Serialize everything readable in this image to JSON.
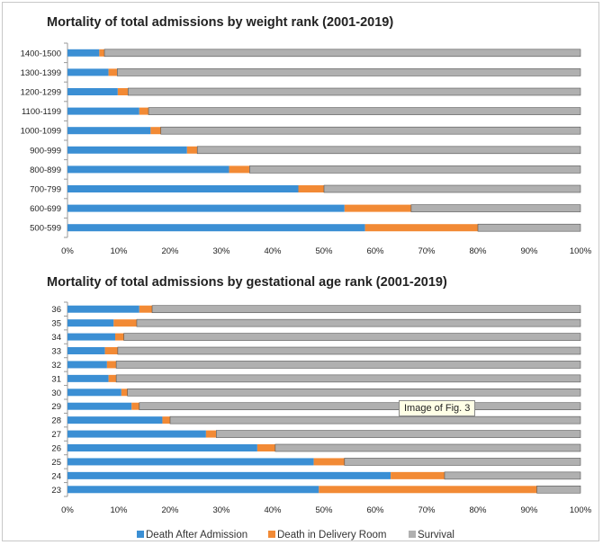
{
  "colors": {
    "death_after_admission": "#3b8fd4",
    "death_in_delivery_room": "#f28a35",
    "survival": "#b0b0b0"
  },
  "tooltip": "Image of Fig. 3",
  "legend": [
    {
      "label": "Death After Admission",
      "color": "#3b8fd4"
    },
    {
      "label": "Death in Delivery Room",
      "color": "#f28a35"
    },
    {
      "label": "Survival",
      "color": "#b0b0b0"
    }
  ],
  "chart_data": [
    {
      "type": "bar",
      "orientation": "horizontal",
      "stacked": "percent",
      "title": "Mortality of total admissions by weight rank (2001-2019)",
      "xlim": [
        0,
        100
      ],
      "x_ticks": [
        "0%",
        "10%",
        "20%",
        "30%",
        "40%",
        "50%",
        "60%",
        "70%",
        "80%",
        "90%",
        "100%"
      ],
      "categories": [
        "1400-1500",
        "1300-1399",
        "1200-1299",
        "1100-1199",
        "1000-1099",
        "900-999",
        "800-899",
        "700-799",
        "600-699",
        "500-599"
      ],
      "series": [
        {
          "name": "Death After Admission",
          "values": [
            6.2,
            8.0,
            9.8,
            14.0,
            16.2,
            23.3,
            31.5,
            45.0,
            54.0,
            58.0
          ]
        },
        {
          "name": "Death in Delivery Room",
          "values": [
            1.0,
            1.7,
            2.0,
            1.8,
            2.0,
            2.0,
            4.0,
            5.0,
            13.0,
            22.0
          ]
        },
        {
          "name": "Survival",
          "values": [
            92.8,
            90.3,
            88.2,
            84.2,
            81.8,
            74.7,
            64.5,
            50.0,
            33.0,
            20.0
          ]
        }
      ]
    },
    {
      "type": "bar",
      "orientation": "horizontal",
      "stacked": "percent",
      "title": "Mortality of total admissions by gestational age rank (2001-2019)",
      "xlim": [
        0,
        100
      ],
      "x_ticks": [
        "0%",
        "10%",
        "20%",
        "30%",
        "40%",
        "50%",
        "60%",
        "70%",
        "80%",
        "90%",
        "100%"
      ],
      "categories": [
        "36",
        "35",
        "34",
        "33",
        "32",
        "31",
        "30",
        "29",
        "28",
        "27",
        "26",
        "25",
        "24",
        "23"
      ],
      "series": [
        {
          "name": "Death After Admission",
          "values": [
            14.0,
            9.0,
            9.3,
            7.3,
            7.7,
            8.0,
            10.5,
            12.5,
            18.5,
            27.0,
            37.0,
            48.0,
            63.0,
            49.0
          ]
        },
        {
          "name": "Death in Delivery Room",
          "values": [
            2.5,
            4.5,
            1.7,
            2.5,
            1.8,
            1.5,
            1.2,
            1.5,
            1.5,
            2.0,
            3.5,
            6.0,
            10.5,
            42.5
          ]
        },
        {
          "name": "Survival",
          "values": [
            83.5,
            86.5,
            89.0,
            90.2,
            90.5,
            90.5,
            88.3,
            86.0,
            80.0,
            71.0,
            59.5,
            46.0,
            26.5,
            8.5
          ]
        }
      ]
    }
  ]
}
